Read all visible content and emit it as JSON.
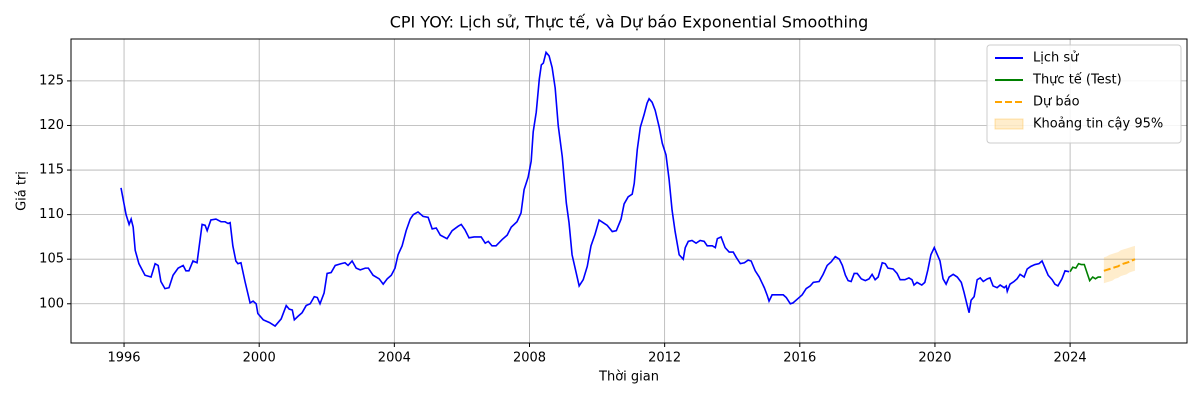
{
  "chart_data": {
    "type": "line",
    "title": "CPI YOY: Lịch sử, Thực tế, và Dự báo Exponential Smoothing",
    "xlabel": "Thời gian",
    "ylabel": "Giá trị",
    "xlim": [
      1994.43,
      2027.46
    ],
    "ylim": [
      95.6,
      129.7
    ],
    "xticks": [
      1996,
      2000,
      2004,
      2008,
      2012,
      2016,
      2020,
      2024
    ],
    "yticks": [
      100,
      105,
      110,
      115,
      120,
      125
    ],
    "grid": true,
    "legend": "upper right",
    "series": [
      {
        "name": "Lịch sử",
        "color": "#0000ff",
        "line_style": "solid",
        "x": [
          1995.91,
          1996.06,
          1996.15,
          1996.21,
          1996.27,
          1996.33,
          1996.44,
          1996.62,
          1996.8,
          1996.92,
          1997.01,
          1997.09,
          1997.21,
          1997.33,
          1997.45,
          1997.6,
          1997.75,
          1997.83,
          1997.92,
          1998.04,
          1998.16,
          1998.31,
          1998.4,
          1998.46,
          1998.57,
          1998.72,
          1998.87,
          1998.99,
          1999.08,
          1999.14,
          1999.22,
          1999.31,
          1999.37,
          1999.46,
          1999.58,
          1999.73,
          1999.82,
          1999.91,
          1999.96,
          2000.12,
          2000.3,
          2000.47,
          2000.65,
          2000.8,
          2000.89,
          2000.98,
          2001.04,
          2001.15,
          2001.27,
          2001.39,
          2001.51,
          2001.63,
          2001.72,
          2001.8,
          2001.92,
          2002.01,
          2002.13,
          2002.25,
          2002.43,
          2002.54,
          2002.63,
          2002.75,
          2002.87,
          2002.99,
          2003.14,
          2003.23,
          2003.37,
          2003.55,
          2003.67,
          2003.79,
          2003.91,
          2004.02,
          2004.11,
          2004.23,
          2004.35,
          2004.47,
          2004.56,
          2004.7,
          2004.85,
          2005.0,
          2005.12,
          2005.24,
          2005.36,
          2005.56,
          2005.71,
          2005.89,
          2005.98,
          2006.09,
          2006.21,
          2006.36,
          2006.57,
          2006.69,
          2006.78,
          2006.89,
          2007.01,
          2007.19,
          2007.34,
          2007.46,
          2007.63,
          2007.75,
          2007.84,
          2007.96,
          2008.05,
          2008.11,
          2008.2,
          2008.29,
          2008.35,
          2008.41,
          2008.49,
          2008.58,
          2008.67,
          2008.76,
          2008.85,
          2008.97,
          2009.09,
          2009.17,
          2009.26,
          2009.38,
          2009.47,
          2009.59,
          2009.71,
          2009.82,
          2009.94,
          2010.06,
          2010.18,
          2010.3,
          2010.45,
          2010.57,
          2010.71,
          2010.8,
          2010.92,
          2011.04,
          2011.1,
          2011.19,
          2011.28,
          2011.39,
          2011.48,
          2011.54,
          2011.63,
          2011.72,
          2011.84,
          2011.93,
          2012.04,
          2012.13,
          2012.22,
          2012.31,
          2012.43,
          2012.55,
          2012.61,
          2012.7,
          2012.81,
          2012.93,
          2013.05,
          2013.17,
          2013.26,
          2013.41,
          2013.5,
          2013.56,
          2013.67,
          2013.79,
          2013.91,
          2014.03,
          2014.12,
          2014.24,
          2014.36,
          2014.47,
          2014.56,
          2014.68,
          2014.8,
          2014.95,
          2015.04,
          2015.09,
          2015.18,
          2015.33,
          2015.51,
          2015.6,
          2015.72,
          2015.8,
          2015.95,
          2016.07,
          2016.19,
          2016.31,
          2016.4,
          2016.57,
          2016.69,
          2016.81,
          2016.93,
          2017.05,
          2017.17,
          2017.26,
          2017.35,
          2017.43,
          2017.52,
          2017.61,
          2017.7,
          2017.82,
          2017.94,
          2018.05,
          2018.14,
          2018.23,
          2018.32,
          2018.44,
          2018.53,
          2018.61,
          2018.76,
          2018.88,
          2018.97,
          2019.11,
          2019.23,
          2019.32,
          2019.38,
          2019.47,
          2019.61,
          2019.7,
          2019.79,
          2019.88,
          2019.98,
          2020.07,
          2020.15,
          2020.24,
          2020.33,
          2020.42,
          2020.54,
          2020.66,
          2020.78,
          2020.86,
          2020.95,
          2021.01,
          2021.07,
          2021.16,
          2021.25,
          2021.34,
          2021.43,
          2021.55,
          2021.63,
          2021.72,
          2021.84,
          2021.93,
          2022.05,
          2022.11,
          2022.14,
          2022.22,
          2022.34,
          2022.43,
          2022.52,
          2022.64,
          2022.73,
          2022.84,
          2022.96,
          2023.08,
          2023.17,
          2023.26,
          2023.35,
          2023.47,
          2023.55,
          2023.64,
          2023.76,
          2023.85,
          2023.97
        ],
        "values": [
          113,
          110,
          108.9,
          109.5,
          108.6,
          106,
          104.5,
          103.2,
          103.0,
          104.5,
          104.3,
          102.5,
          101.7,
          101.8,
          103.2,
          104.0,
          104.3,
          103.7,
          103.7,
          104.8,
          104.6,
          108.9,
          108.8,
          108.2,
          109.4,
          109.5,
          109.2,
          109.2,
          109.0,
          109.1,
          106.5,
          104.8,
          104.5,
          104.6,
          102.5,
          100.1,
          100.3,
          100.0,
          98.9,
          98.2,
          97.9,
          97.5,
          98.3,
          99.8,
          99.4,
          99.3,
          98.2,
          98.6,
          99.0,
          99.8,
          100.0,
          100.8,
          100.7,
          100.0,
          101.2,
          103.4,
          103.5,
          104.3,
          104.5,
          104.6,
          104.3,
          104.8,
          104.0,
          103.8,
          104.0,
          104.0,
          103.2,
          102.8,
          102.2,
          102.8,
          103.2,
          104.0,
          105.5,
          106.5,
          108.2,
          109.5,
          110.0,
          110.3,
          109.8,
          109.7,
          108.4,
          108.5,
          107.7,
          107.3,
          108.2,
          108.7,
          108.9,
          108.3,
          107.4,
          107.5,
          107.5,
          106.8,
          107.0,
          106.5,
          106.5,
          107.2,
          107.7,
          108.6,
          109.2,
          110.2,
          112.8,
          114.2,
          116.0,
          119.3,
          121.5,
          125.2,
          126.8,
          127.0,
          128.2,
          127.8,
          126.5,
          124.2,
          120.0,
          116.5,
          111.3,
          109.1,
          105.5,
          103.5,
          102.0,
          102.7,
          104.2,
          106.5,
          107.8,
          109.4,
          109.1,
          108.8,
          108.1,
          108.2,
          109.5,
          111.2,
          112.0,
          112.3,
          113.5,
          117.3,
          119.8,
          121.2,
          122.5,
          123.0,
          122.6,
          121.7,
          119.8,
          118.0,
          116.7,
          114.0,
          110.5,
          108.1,
          105.5,
          105.0,
          106.3,
          107.0,
          107.1,
          106.8,
          107.1,
          107.0,
          106.5,
          106.5,
          106.3,
          107.3,
          107.5,
          106.3,
          105.8,
          105.8,
          105.2,
          104.5,
          104.6,
          104.9,
          104.8,
          103.7,
          103.0,
          101.8,
          100.9,
          100.3,
          101.0,
          101.0,
          101.0,
          100.7,
          100.0,
          100.1,
          100.6,
          101.0,
          101.7,
          102.0,
          102.4,
          102.5,
          103.3,
          104.3,
          104.7,
          105.3,
          105.0,
          104.3,
          103.2,
          102.6,
          102.5,
          103.4,
          103.4,
          102.8,
          102.6,
          102.8,
          103.3,
          102.7,
          103.0,
          104.6,
          104.5,
          104.0,
          103.9,
          103.4,
          102.7,
          102.7,
          102.9,
          102.7,
          102.1,
          102.4,
          102.1,
          102.4,
          103.8,
          105.5,
          106.3,
          105.5,
          104.8,
          102.8,
          102.2,
          103.0,
          103.3,
          103.0,
          102.4,
          101.3,
          99.9,
          99.0,
          100.4,
          100.8,
          102.7,
          102.9,
          102.5,
          102.8,
          102.9,
          102.0,
          101.8,
          102.1,
          101.8,
          102.0,
          101.4,
          102.2,
          102.5,
          102.8,
          103.3,
          103.0,
          103.9,
          104.2,
          104.4,
          104.5,
          104.8,
          104.0,
          103.2,
          102.7,
          102.2,
          102.0,
          102.8,
          103.7,
          103.6
        ]
      },
      {
        "name": "Thực tế (Test)",
        "color": "#008000",
        "line_style": "solid",
        "x": [
          2024.0,
          2024.08,
          2024.17,
          2024.25,
          2024.33,
          2024.42,
          2024.5,
          2024.58,
          2024.67,
          2024.75,
          2024.83,
          2024.92
        ],
        "values": [
          103.6,
          104.1,
          104.0,
          104.5,
          104.4,
          104.4,
          103.5,
          102.6,
          103.0,
          102.8,
          103.0,
          103.0
        ]
      },
      {
        "name": "Dự báo",
        "color": "#ffa500",
        "line_style": "dashed",
        "x": [
          2025.0,
          2025.08,
          2025.17,
          2025.25,
          2025.33,
          2025.42,
          2025.5,
          2025.58,
          2025.67,
          2025.75,
          2025.83,
          2025.92
        ],
        "values": [
          103.7,
          103.8,
          103.9,
          104.0,
          104.1,
          104.2,
          104.4,
          104.5,
          104.6,
          104.7,
          104.85,
          105.0
        ]
      }
    ],
    "band": {
      "name": "Khoảng tin cậy 95%",
      "color": "#ffa500",
      "x": [
        2025.0,
        2025.08,
        2025.17,
        2025.25,
        2025.33,
        2025.42,
        2025.5,
        2025.58,
        2025.67,
        2025.75,
        2025.83,
        2025.92
      ],
      "lower": [
        102.3,
        102.4,
        102.5,
        102.6,
        102.8,
        102.9,
        103.1,
        103.2,
        103.3,
        103.5,
        103.6,
        103.7
      ],
      "upper": [
        105.2,
        105.3,
        105.5,
        105.6,
        105.7,
        105.8,
        106.0,
        106.1,
        106.2,
        106.3,
        106.4,
        106.5
      ]
    }
  }
}
